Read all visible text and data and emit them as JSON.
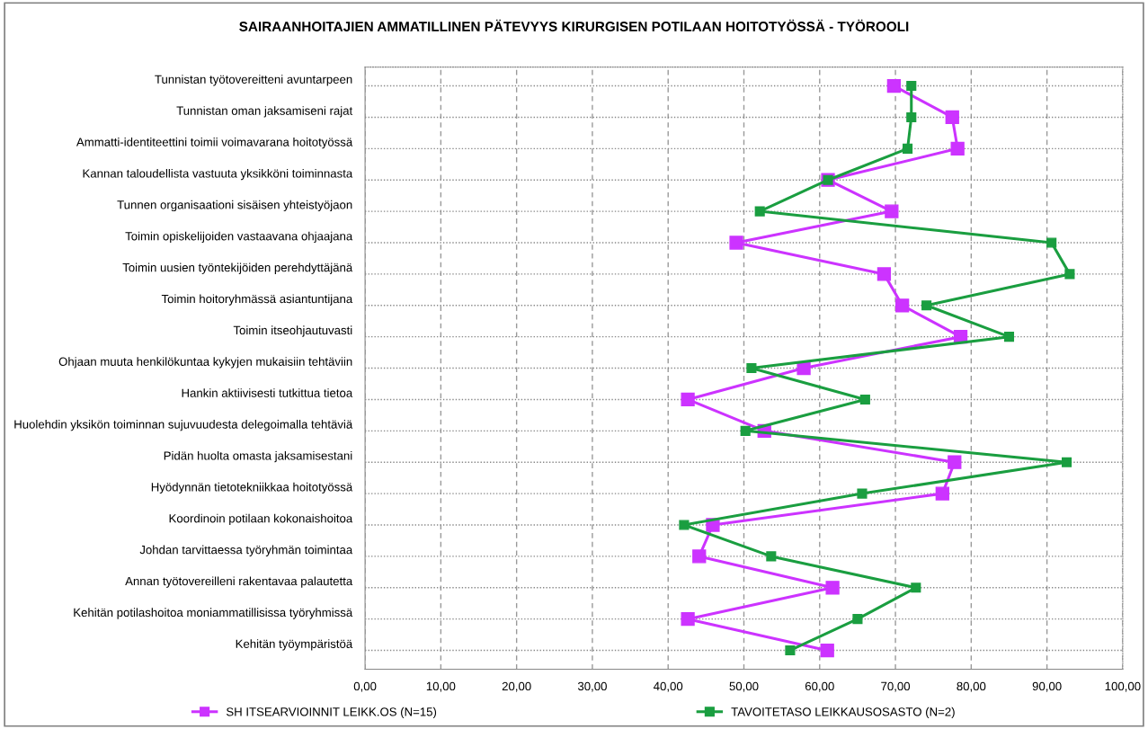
{
  "chart_data": {
    "type": "line",
    "orientation": "horizontal",
    "title": "SAIRAANHOITAJIEN AMMATILLINEN PÄTEVYYS KIRURGISEN POTILAAN HOITOTYÖSSÄ - TYÖROOLI",
    "categories": [
      "Tunnistan työtovereitteni avuntarpeen",
      "Tunnistan oman jaksamiseni rajat",
      "Ammatti-identiteettini toimii voimavarana hoitotyössä",
      "Kannan taloudellista vastuuta yksikköni toiminnasta",
      "Tunnen organisaationi sisäisen yhteistyöjaon",
      "Toimin opiskelijoiden vastaavana ohjaajana",
      "Toimin uusien työntekijöiden perehdyttäjänä",
      "Toimin hoitoryhmässä asiantuntijana",
      "Toimin itseohjautuvasti",
      "Ohjaan muuta henkilökuntaa kykyjen mukaisiin tehtäviin",
      "Hankin aktiivisesti tutkittua tietoa",
      "Huolehdin yksikön toiminnan sujuvuudesta delegoimalla tehtäviä",
      "Pidän huolta omasta jaksamisestani",
      "Hyödynnän tietotekniikkaa hoitotyössä",
      "Koordinoin potilaan kokonaishoitoa",
      "Johdan tarvittaessa työryhmän toimintaa",
      "Annan työtovereilleni rakentavaa palautetta",
      "Kehitän potilashoitoa moniammatillisissa työryhmissä",
      "Kehitän työympäristöä"
    ],
    "series": [
      {
        "name": "SH ITSEARVIOINNIT LEIKK.OS (N=15)",
        "color": "#cc33ff",
        "values": [
          69.8,
          77.5,
          78.2,
          61.1,
          69.5,
          49.0,
          68.5,
          70.9,
          78.6,
          57.9,
          42.6,
          52.7,
          77.8,
          76.2,
          45.9,
          44.1,
          61.7,
          42.6,
          61.0
        ]
      },
      {
        "name": "TAVOITETASO LEIKKAUSOSASTO (N=2)",
        "color": "#1a9e40",
        "values": [
          72.1,
          72.1,
          71.6,
          61.1,
          52.1,
          90.6,
          93.0,
          74.1,
          85.0,
          51.0,
          66.0,
          50.2,
          92.6,
          65.6,
          42.1,
          53.6,
          72.7,
          65.0,
          56.1
        ]
      }
    ],
    "xlim": [
      0,
      100
    ],
    "xticks": [
      {
        "value": 0,
        "label": "0,00"
      },
      {
        "value": 10,
        "label": "10,00"
      },
      {
        "value": 20,
        "label": "20,00"
      },
      {
        "value": 30,
        "label": "30,00"
      },
      {
        "value": 40,
        "label": "40,00"
      },
      {
        "value": 50,
        "label": "50,00"
      },
      {
        "value": 60,
        "label": "60,00"
      },
      {
        "value": 70,
        "label": "70,00"
      },
      {
        "value": 80,
        "label": "80,00"
      },
      {
        "value": 90,
        "label": "90,00"
      },
      {
        "value": 100,
        "label": "100,00"
      }
    ],
    "grid": true,
    "legend": "bottom",
    "marker": "square",
    "line_style": "solid"
  }
}
